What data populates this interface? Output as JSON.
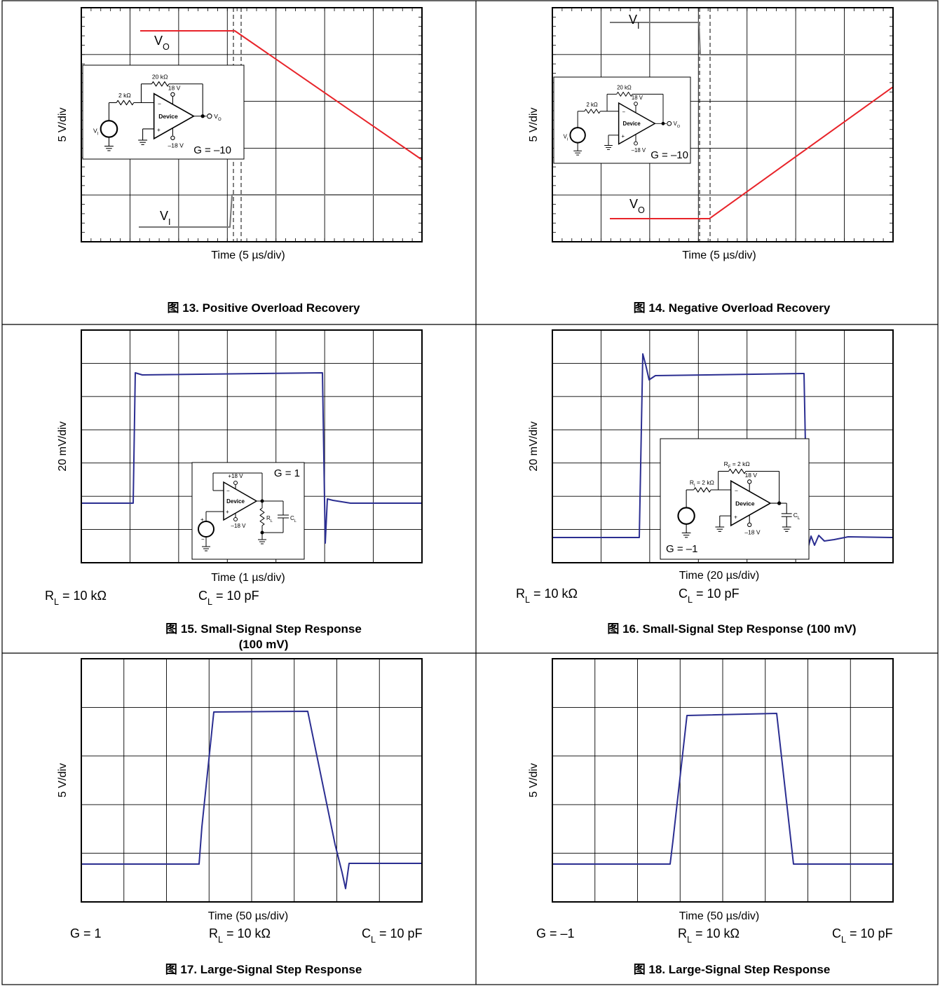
{
  "figures": [
    {
      "caption_lines": [
        "图 13. Positive Overload Recovery"
      ],
      "y_label": "5 V/div",
      "x_label": "Time (5 µs/div)",
      "traces": [
        {
          "symbol": "V",
          "sub": "O"
        },
        {
          "symbol": "V",
          "sub": "I"
        }
      ],
      "circuit": {
        "r_in": {
          "text": "2 kΩ"
        },
        "r_f": {
          "text": "20 kΩ"
        },
        "v_pos": "18 V",
        "v_neg": "–18 V",
        "device": "Device",
        "input": {
          "symbol": "V",
          "sub": "I"
        },
        "output": {
          "symbol": "V",
          "sub": "O"
        },
        "gain": "G = –10"
      }
    },
    {
      "caption_lines": [
        "图 14. Negative Overload Recovery"
      ],
      "y_label": "5 V/div",
      "x_label": "Time (5 µs/div)",
      "traces": [
        {
          "symbol": "V",
          "sub": "I"
        },
        {
          "symbol": "V",
          "sub": "O"
        }
      ],
      "circuit": {
        "r_in": {
          "text": "2 kΩ"
        },
        "r_f": {
          "text": "20 kΩ"
        },
        "v_pos": "18 V",
        "v_neg": "–18 V",
        "device": "Device",
        "input": {
          "symbol": "V",
          "sub": "I"
        },
        "output": {
          "symbol": "V",
          "sub": "O"
        },
        "gain": "G = –10"
      }
    },
    {
      "caption_lines": [
        "图 15. Small-Signal Step Response",
        "(100 mV)"
      ],
      "y_label": "20 mV/div",
      "x_label": "Time (1 µs/div)",
      "params": [
        {
          "symbol": "R",
          "sub": "L",
          "text": " = 10 kΩ"
        },
        {
          "symbol": "C",
          "sub": "L",
          "text": " = 10 pF"
        }
      ],
      "circuit": {
        "v_pos": "+18 V",
        "v_neg": "–18 V",
        "device": "Device",
        "r_load": {
          "symbol": "R",
          "sub": "L"
        },
        "c_load": {
          "symbol": "C",
          "sub": "L"
        },
        "gain": "G = 1"
      }
    },
    {
      "caption_lines": [
        "图 16. Small-Signal Step Response (100 mV)"
      ],
      "y_label": "20 mV/div",
      "x_label": "Time (20 µs/div)",
      "params": [
        {
          "symbol": "R",
          "sub": "L",
          "text": " = 10 kΩ"
        },
        {
          "symbol": "C",
          "sub": "L",
          "text": " = 10 pF"
        }
      ],
      "circuit": {
        "r_in": {
          "symbol": "R",
          "sub": "I",
          "text": " = 2 kΩ"
        },
        "r_f": {
          "symbol": "R",
          "sub": "F",
          "text": " = 2 kΩ"
        },
        "v_pos": "18 V",
        "v_neg": "–18 V",
        "device": "Device",
        "c_load": {
          "symbol": "C",
          "sub": "L"
        },
        "gain": "G = –1"
      }
    },
    {
      "caption_lines": [
        "图 17. Large-Signal Step Response"
      ],
      "y_label": "5 V/div",
      "x_label": "Time (50 µs/div)",
      "params": [
        {
          "text": "G = 1"
        },
        {
          "symbol": "R",
          "sub": "L",
          "text": " = 10 kΩ"
        },
        {
          "symbol": "C",
          "sub": "L",
          "text": " = 10 pF"
        }
      ]
    },
    {
      "caption_lines": [
        "图 18. Large-Signal Step Response"
      ],
      "y_label": "5 V/div",
      "x_label": "Time (50 µs/div)",
      "params": [
        {
          "text": "G = –1"
        },
        {
          "symbol": "R",
          "sub": "L",
          "text": " = 10 kΩ"
        },
        {
          "symbol": "C",
          "sub": "L",
          "text": " = 10 pF"
        }
      ]
    }
  ]
}
